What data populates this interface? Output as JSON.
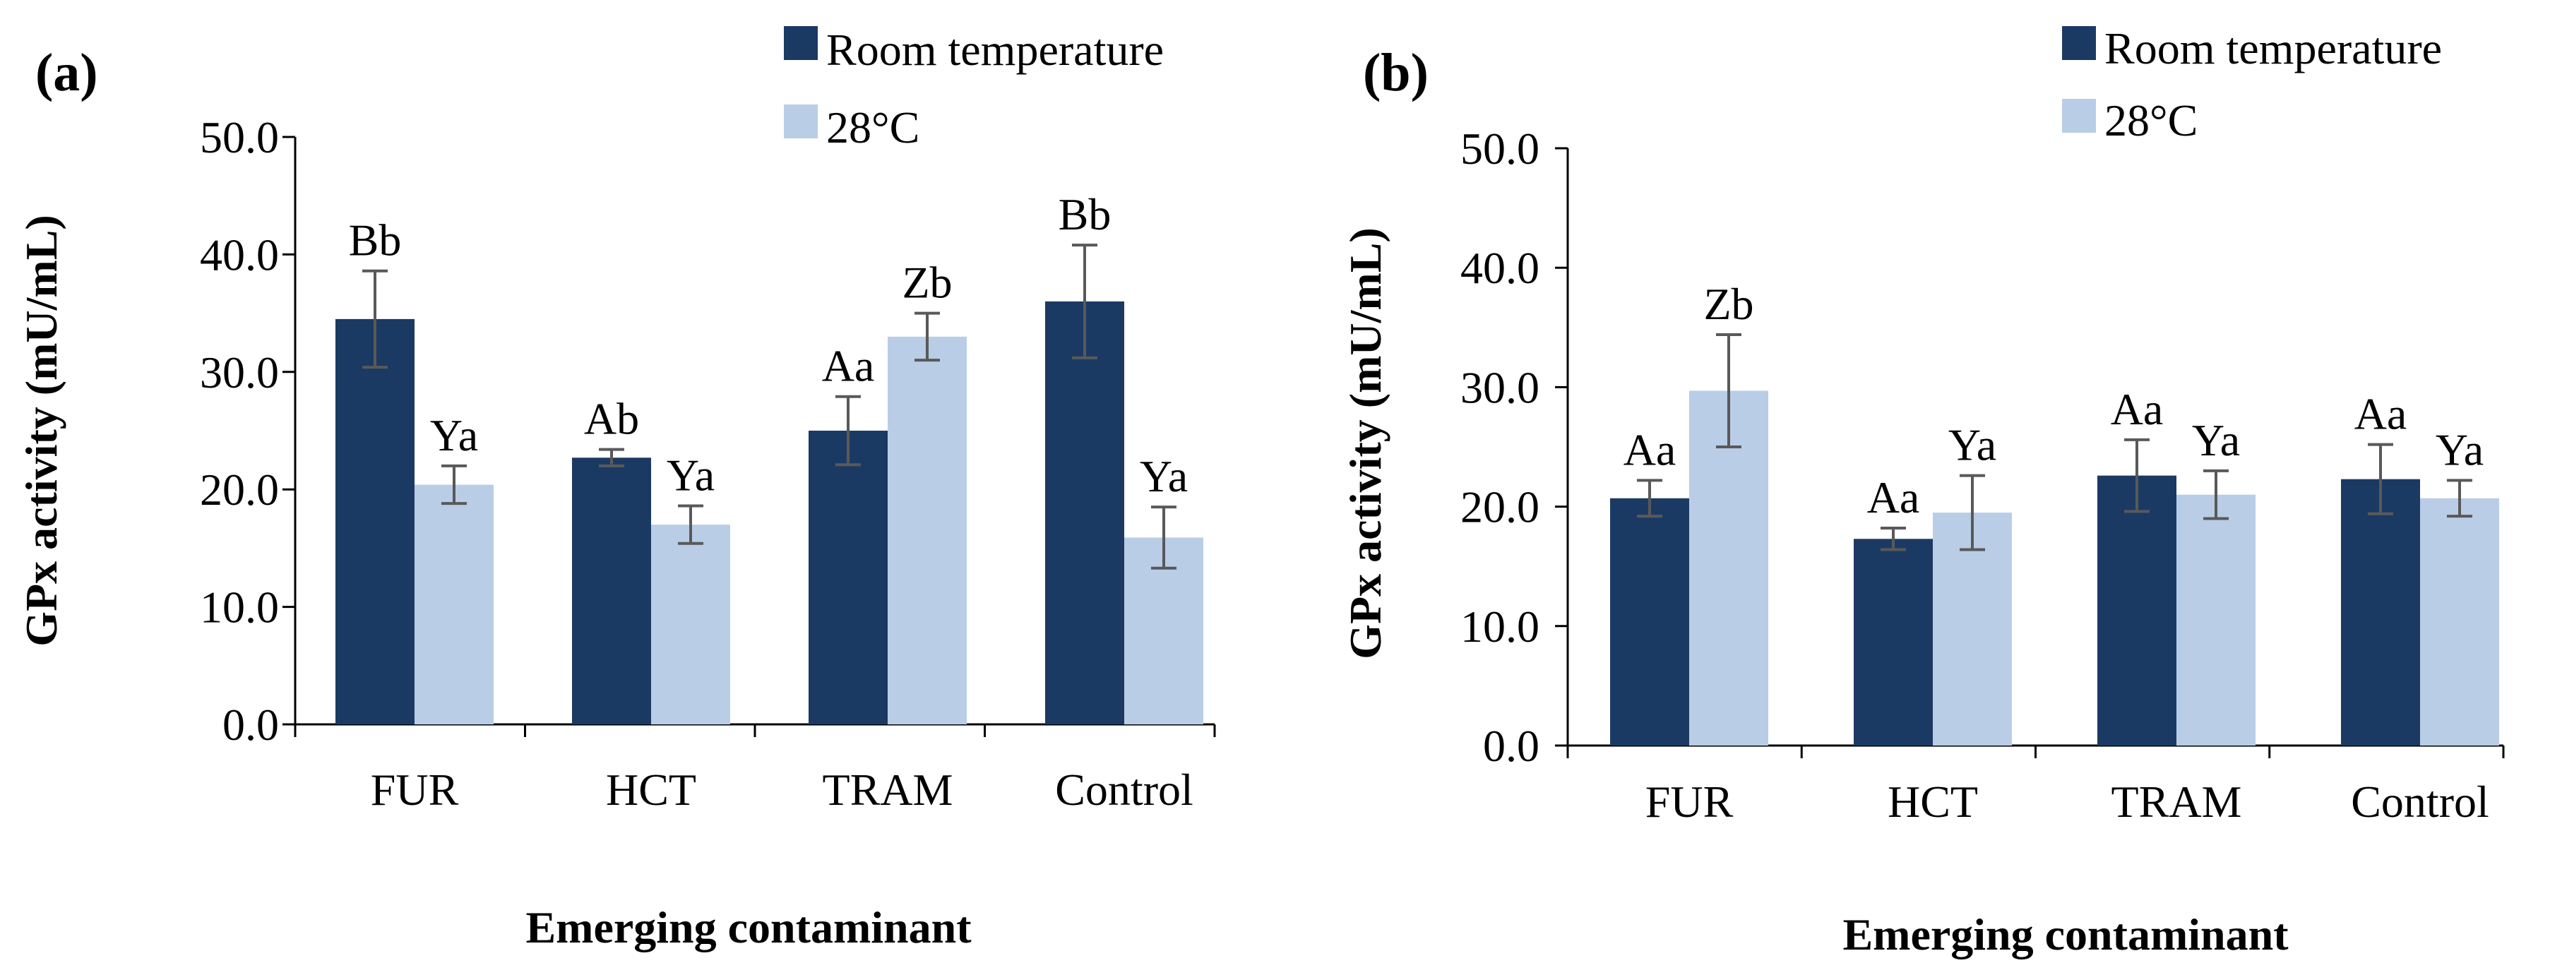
{
  "chart_data": [
    {
      "type": "bar",
      "panel_label": "(a)",
      "categories": [
        "FUR",
        "HCT",
        "TRAM",
        "Control"
      ],
      "series": [
        {
          "name": "Room temperature",
          "color": "#1b3a63",
          "values": [
            34.5,
            22.7,
            25.0,
            36.0
          ],
          "errors": [
            4.1,
            0.7,
            2.9,
            4.8
          ],
          "labels": [
            "Bb",
            "Ab",
            "Aa",
            "Bb"
          ]
        },
        {
          "name": "28°C",
          "color": "#b9cde6",
          "values": [
            20.4,
            17.0,
            33.0,
            15.9
          ],
          "errors": [
            1.6,
            1.6,
            2.0,
            2.6
          ],
          "labels": [
            "Ya",
            "Ya",
            "Zb",
            "Ya"
          ]
        }
      ],
      "ylabel": "GPx activity (mU/mL)",
      "xlabel": "Emerging contaminant",
      "ylim": [
        0,
        50
      ],
      "yticks": [
        "0.0",
        "10.0",
        "20.0",
        "30.0",
        "40.0",
        "50.0"
      ],
      "legend_position": "top-right",
      "grid": false
    },
    {
      "type": "bar",
      "panel_label": "(b)",
      "categories": [
        "FUR",
        "HCT",
        "TRAM",
        "Control"
      ],
      "series": [
        {
          "name": "Room temperature",
          "color": "#1b3a63",
          "values": [
            20.7,
            17.3,
            22.6,
            22.3
          ],
          "errors": [
            1.5,
            0.9,
            3.0,
            2.9
          ],
          "labels": [
            "Aa",
            "Aa",
            "Aa",
            "Aa"
          ]
        },
        {
          "name": "28°C",
          "color": "#b9cde6",
          "values": [
            29.7,
            19.5,
            21.0,
            20.7
          ],
          "errors": [
            4.7,
            3.1,
            2.0,
            1.5
          ],
          "labels": [
            "Zb",
            "Ya",
            "Ya",
            "Ya"
          ]
        }
      ],
      "ylabel": "GPx  activity (mU/mL)",
      "xlabel": "Emerging contaminant",
      "ylim": [
        0,
        50
      ],
      "yticks": [
        "0.0",
        "10.0",
        "20.0",
        "30.0",
        "40.0",
        "50.0"
      ],
      "legend_position": "top-right",
      "grid": false
    }
  ],
  "colors": {
    "axis": "#000000",
    "error_bar": "#595959"
  }
}
